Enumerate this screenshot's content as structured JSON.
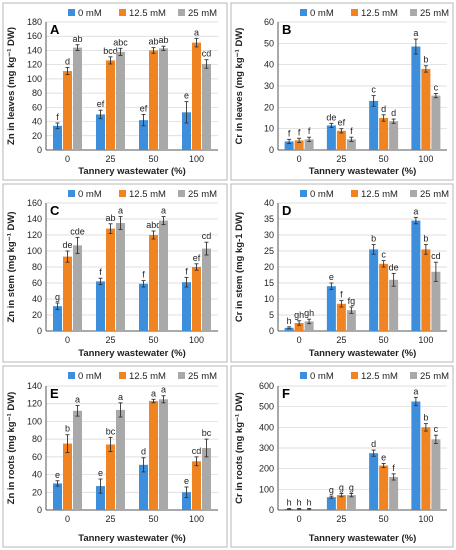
{
  "colors": {
    "s0": "#3d8fdc",
    "s1": "#f08423",
    "s2": "#a9a9a9"
  },
  "chart_data": [
    {
      "type": "bar",
      "letter": "A",
      "xlabel": "Tannery wastewater (%)",
      "ylabel": "Zn in leaves (mg kg⁻¹ DW)",
      "categories": [
        "0",
        "25",
        "50",
        "100"
      ],
      "ylim": [
        0,
        180
      ],
      "yticks": [
        0,
        20,
        40,
        60,
        80,
        100,
        120,
        140,
        160,
        180
      ],
      "series": [
        {
          "name": "0 mM",
          "values": [
            34,
            50,
            42,
            53
          ],
          "errors": [
            4,
            6,
            8,
            15
          ],
          "letters": [
            "f",
            "ef",
            "ef",
            "e"
          ]
        },
        {
          "name": "12.5 mM",
          "values": [
            111,
            126,
            140,
            151
          ],
          "errors": [
            5,
            5,
            4,
            6
          ],
          "letters": [
            "d",
            "bcd",
            "ab",
            "a"
          ]
        },
        {
          "name": "25 mM",
          "values": [
            144,
            138,
            143,
            121
          ],
          "errors": [
            4,
            5,
            3,
            6
          ],
          "letters": [
            "ab",
            "abc",
            "ab",
            "cd"
          ]
        }
      ]
    },
    {
      "type": "bar",
      "letter": "B",
      "xlabel": "Tannery wastewater (%)",
      "ylabel": "Cr in leaves (mg kg⁻¹ DW)",
      "categories": [
        "0",
        "25",
        "50",
        "100"
      ],
      "ylim": [
        0,
        60
      ],
      "yticks": [
        0,
        10,
        20,
        30,
        40,
        50,
        60
      ],
      "series": [
        {
          "name": "0 mM",
          "values": [
            4,
            11.5,
            23,
            48.5
          ],
          "errors": [
            1,
            1,
            2.5,
            3.5
          ],
          "letters": [
            "f",
            "de",
            "c",
            "a"
          ]
        },
        {
          "name": "12.5 mM",
          "values": [
            4.5,
            9,
            15,
            38
          ],
          "errors": [
            1,
            1,
            1.5,
            1.5
          ],
          "letters": [
            "f",
            "ef",
            "d",
            "b"
          ]
        },
        {
          "name": "25 mM",
          "values": [
            5,
            5,
            13.5,
            25.5
          ],
          "errors": [
            1,
            1,
            1,
            1
          ],
          "letters": [
            "f",
            "f",
            "d",
            "c"
          ]
        }
      ]
    },
    {
      "type": "bar",
      "letter": "C",
      "xlabel": "Tannery wastewater (%)",
      "ylabel": "Zn in stem (mg kg⁻¹ DW)",
      "categories": [
        "0",
        "25",
        "50",
        "100"
      ],
      "ylim": [
        0,
        160
      ],
      "yticks": [
        0,
        20,
        40,
        60,
        80,
        100,
        120,
        140,
        160
      ],
      "series": [
        {
          "name": "0 mM",
          "values": [
            31,
            62,
            59,
            61
          ],
          "errors": [
            4,
            4,
            4,
            6
          ],
          "letters": [
            "g",
            "f",
            "f",
            "f"
          ]
        },
        {
          "name": "12.5 mM",
          "values": [
            93,
            128,
            120,
            80
          ],
          "errors": [
            7,
            6,
            5,
            4
          ],
          "letters": [
            "de",
            "ab",
            "abc",
            "ef"
          ]
        },
        {
          "name": "25 mM",
          "values": [
            107,
            135,
            138,
            103
          ],
          "errors": [
            10,
            8,
            5,
            8
          ],
          "letters": [
            "cde",
            "a",
            "a",
            "cd"
          ]
        }
      ]
    },
    {
      "type": "bar",
      "letter": "D",
      "xlabel": "Tannery wastewater (%)",
      "ylabel": "Cr in stem (mg kg-1 DW)",
      "categories": [
        "0",
        "25",
        "50",
        "100"
      ],
      "ylim": [
        0,
        40
      ],
      "yticks": [
        0,
        5,
        10,
        15,
        20,
        25,
        30,
        35,
        40
      ],
      "series": [
        {
          "name": "0 mM",
          "values": [
            1,
            14,
            25.5,
            34.5
          ],
          "errors": [
            0.3,
            1,
            1.5,
            1
          ],
          "letters": [
            "h",
            "e",
            "b",
            "a"
          ]
        },
        {
          "name": "12.5 mM",
          "values": [
            2.5,
            8.5,
            21,
            25.5
          ],
          "errors": [
            0.7,
            1,
            1,
            1.5
          ],
          "letters": [
            "gh",
            "f",
            "c",
            "b"
          ]
        },
        {
          "name": "25 mM",
          "values": [
            3,
            6.5,
            16,
            18.5
          ],
          "errors": [
            0.7,
            1,
            2,
            3
          ],
          "letters": [
            "gh",
            "fg",
            "de",
            "cd"
          ]
        }
      ]
    },
    {
      "type": "bar",
      "letter": "E",
      "xlabel": "Tannery wastewater (%)",
      "ylabel": "Zn in roots (mg kg⁻¹ DW)",
      "categories": [
        "0",
        "25",
        "50",
        "100"
      ],
      "ylim": [
        0,
        140
      ],
      "yticks": [
        0,
        20,
        40,
        60,
        80,
        100,
        120,
        140
      ],
      "series": [
        {
          "name": "0 mM",
          "values": [
            30,
            27,
            51,
            20
          ],
          "errors": [
            3,
            8,
            8,
            6
          ],
          "letters": [
            "e",
            "e",
            "d",
            "e"
          ]
        },
        {
          "name": "12.5 mM",
          "values": [
            75,
            74,
            123,
            55
          ],
          "errors": [
            10,
            8,
            2,
            5
          ],
          "letters": [
            "b",
            "bc",
            "a",
            "cd"
          ]
        },
        {
          "name": "25 mM",
          "values": [
            112,
            113,
            125,
            70
          ],
          "errors": [
            6,
            8,
            4,
            10
          ],
          "letters": [
            "a",
            "a",
            "a",
            "bc"
          ]
        }
      ]
    },
    {
      "type": "bar",
      "letter": "F",
      "xlabel": "Tannery wastewater (%)",
      "ylabel": "Cr in roots (mg kg⁻¹ DW)",
      "categories": [
        "0",
        "25",
        "50",
        "100"
      ],
      "ylim": [
        0,
        600
      ],
      "yticks": [
        0,
        100,
        200,
        300,
        400,
        500,
        600
      ],
      "series": [
        {
          "name": "0 mM",
          "values": [
            5,
            62,
            275,
            525
          ],
          "errors": [
            2,
            5,
            15,
            20
          ],
          "letters": [
            "h",
            "g",
            "d",
            "a"
          ]
        },
        {
          "name": "12.5 mM",
          "values": [
            5,
            72,
            215,
            400
          ],
          "errors": [
            2,
            8,
            10,
            18
          ],
          "letters": [
            "h",
            "g",
            "e",
            "b"
          ]
        },
        {
          "name": "25 mM",
          "values": [
            5,
            72,
            160,
            342
          ],
          "errors": [
            2,
            8,
            15,
            20
          ],
          "letters": [
            "h",
            "g",
            "f",
            "c"
          ]
        }
      ]
    }
  ]
}
